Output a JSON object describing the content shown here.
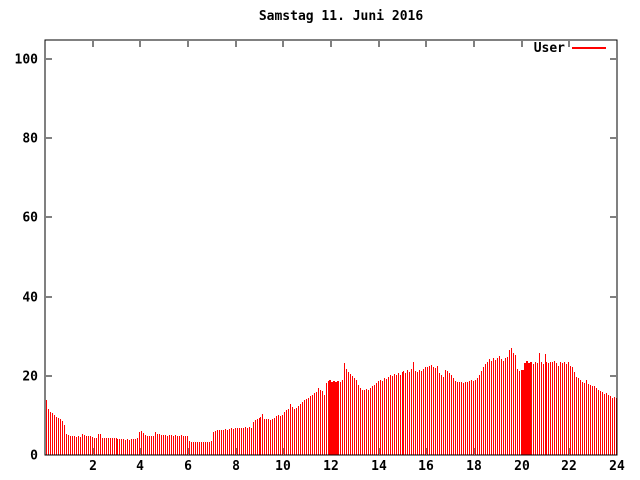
{
  "window": {
    "background": "#ffffff"
  },
  "chart_data": {
    "type": "bar",
    "title": "Samstag 11. Juni 2016",
    "xlabel": "",
    "ylabel": "",
    "x_range": [
      0,
      24
    ],
    "y_range": [
      0,
      104.8
    ],
    "x_ticks": [
      2,
      4,
      6,
      8,
      10,
      12,
      14,
      16,
      18,
      20,
      22,
      24
    ],
    "y_ticks": [
      0,
      20,
      40,
      60,
      80,
      100
    ],
    "grid": false,
    "legend_position": "top-right",
    "axis_color": "#000000",
    "text_color": "#000000",
    "interval_minutes": 5,
    "solid_spans_hours": [
      [
        11.9,
        12.35
      ],
      [
        20.03,
        20.45
      ]
    ],
    "series": [
      {
        "name": "User",
        "color": "#ff0000",
        "values": [
          13.9,
          11.6,
          10.9,
          10.5,
          10.0,
          9.6,
          9.3,
          9.0,
          8.6,
          7.6,
          5.2,
          5.0,
          4.9,
          4.7,
          4.8,
          4.6,
          4.7,
          4.6,
          5.3,
          5.1,
          4.9,
          4.7,
          4.8,
          4.6,
          4.4,
          4.3,
          5.3,
          5.2,
          4.4,
          4.3,
          4.4,
          4.3,
          4.3,
          4.4,
          4.3,
          4.3,
          4.1,
          4.0,
          4.1,
          4.0,
          3.9,
          4.0,
          3.9,
          4.0,
          4.1,
          4.0,
          4.2,
          5.9,
          6.1,
          5.6,
          5.0,
          4.8,
          4.9,
          4.7,
          4.8,
          5.7,
          5.4,
          5.2,
          5.0,
          5.1,
          5.0,
          4.9,
          5.1,
          5.0,
          4.9,
          5.0,
          4.8,
          4.9,
          5.0,
          4.8,
          4.9,
          4.7,
          3.5,
          3.4,
          3.3,
          3.4,
          3.3,
          3.3,
          3.4,
          3.3,
          3.3,
          3.4,
          3.3,
          3.5,
          5.9,
          6.1,
          6.3,
          6.2,
          6.4,
          6.3,
          6.5,
          6.4,
          6.6,
          6.7,
          6.6,
          6.8,
          6.8,
          6.7,
          6.9,
          6.8,
          7.0,
          6.9,
          7.0,
          6.9,
          8.4,
          8.8,
          9.2,
          9.4,
          9.6,
          10.3,
          9.2,
          9.0,
          9.2,
          8.9,
          9.1,
          9.3,
          9.8,
          10.1,
          9.9,
          10.2,
          10.8,
          11.3,
          11.6,
          12.9,
          12.0,
          11.5,
          11.9,
          12.4,
          13.0,
          13.5,
          13.9,
          14.2,
          14.5,
          14.8,
          15.2,
          15.6,
          16.0,
          16.9,
          16.5,
          16.2,
          15.1,
          18.1,
          18.6,
          18.9,
          18.4,
          18.7,
          18.5,
          18.8,
          18.5,
          19.0,
          23.2,
          21.8,
          20.9,
          20.4,
          20.0,
          19.5,
          19.0,
          17.6,
          16.8,
          16.5,
          16.4,
          16.6,
          16.5,
          16.8,
          17.3,
          17.8,
          18.2,
          18.6,
          19.0,
          18.8,
          19.4,
          19.2,
          19.8,
          20.2,
          19.9,
          20.4,
          20.1,
          20.6,
          20.3,
          21.0,
          21.2,
          20.8,
          21.4,
          21.0,
          21.6,
          23.6,
          21.3,
          20.9,
          21.5,
          21.1,
          21.8,
          22.1,
          22.3,
          22.6,
          22.7,
          22.2,
          21.9,
          22.4,
          20.7,
          20.2,
          19.8,
          21.5,
          21.2,
          20.8,
          20.2,
          19.4,
          18.7,
          18.5,
          18.4,
          18.5,
          18.3,
          18.5,
          18.4,
          18.6,
          18.9,
          18.8,
          18.9,
          19.4,
          20.2,
          21.1,
          22.3,
          23.0,
          23.6,
          24.2,
          23.8,
          24.5,
          23.9,
          24.6,
          24.9,
          24.3,
          23.8,
          24.4,
          24.7,
          26.6,
          27.0,
          25.7,
          25.3,
          21.7,
          21.3,
          21.5,
          21.5,
          23.3,
          23.7,
          23.2,
          23.5,
          23.1,
          23.4,
          23.2,
          25.7,
          23.4,
          23.1,
          25.6,
          23.5,
          23.3,
          23.6,
          23.4,
          23.7,
          23.2,
          22.6,
          23.5,
          23.3,
          23.6,
          23.1,
          23.4,
          22.6,
          22.1,
          20.9,
          19.8,
          19.4,
          18.9,
          18.5,
          18.3,
          18.9,
          18.0,
          17.6,
          17.3,
          17.3,
          16.9,
          16.5,
          16.1,
          15.8,
          15.4,
          15.6,
          15.1,
          14.8,
          14.5,
          14.7,
          14.3
        ]
      }
    ]
  }
}
